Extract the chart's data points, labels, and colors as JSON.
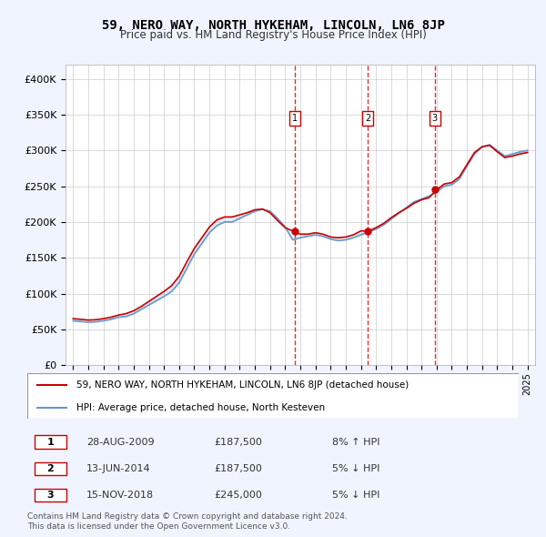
{
  "title": "59, NERO WAY, NORTH HYKEHAM, LINCOLN, LN6 8JP",
  "subtitle": "Price paid vs. HM Land Registry's House Price Index (HPI)",
  "ylabel": "",
  "xlabel": "",
  "ylim": [
    0,
    420000
  ],
  "yticks": [
    0,
    50000,
    100000,
    150000,
    200000,
    250000,
    300000,
    350000,
    400000
  ],
  "ytick_labels": [
    "£0",
    "£50K",
    "£100K",
    "£150K",
    "£200K",
    "£250K",
    "£300K",
    "£350K",
    "£400K"
  ],
  "sale_dates": [
    2009.66,
    2014.44,
    2018.88
  ],
  "sale_prices": [
    187500,
    187500,
    245000
  ],
  "sale_labels": [
    "1",
    "2",
    "3"
  ],
  "sale_pct": [
    "8% ↑ HPI",
    "5% ↓ HPI",
    "5% ↓ HPI"
  ],
  "sale_date_str": [
    "28-AUG-2009",
    "13-JUN-2014",
    "15-NOV-2018"
  ],
  "sale_price_str": [
    "£187,500",
    "£187,500",
    "£245,000"
  ],
  "legend_entries": [
    "59, NERO WAY, NORTH HYKEHAM, LINCOLN, LN6 8JP (detached house)",
    "HPI: Average price, detached house, North Kesteven"
  ],
  "legend_colors": [
    "#cc0000",
    "#6699cc"
  ],
  "footer": "Contains HM Land Registry data © Crown copyright and database right 2024.\nThis data is licensed under the Open Government Licence v3.0.",
  "bg_color": "#f0f4ff",
  "plot_bg": "#ffffff",
  "grid_color": "#cccccc",
  "vline_color": "#cc0000",
  "hpi_line_color": "#6699cc",
  "price_line_color": "#cc0000"
}
